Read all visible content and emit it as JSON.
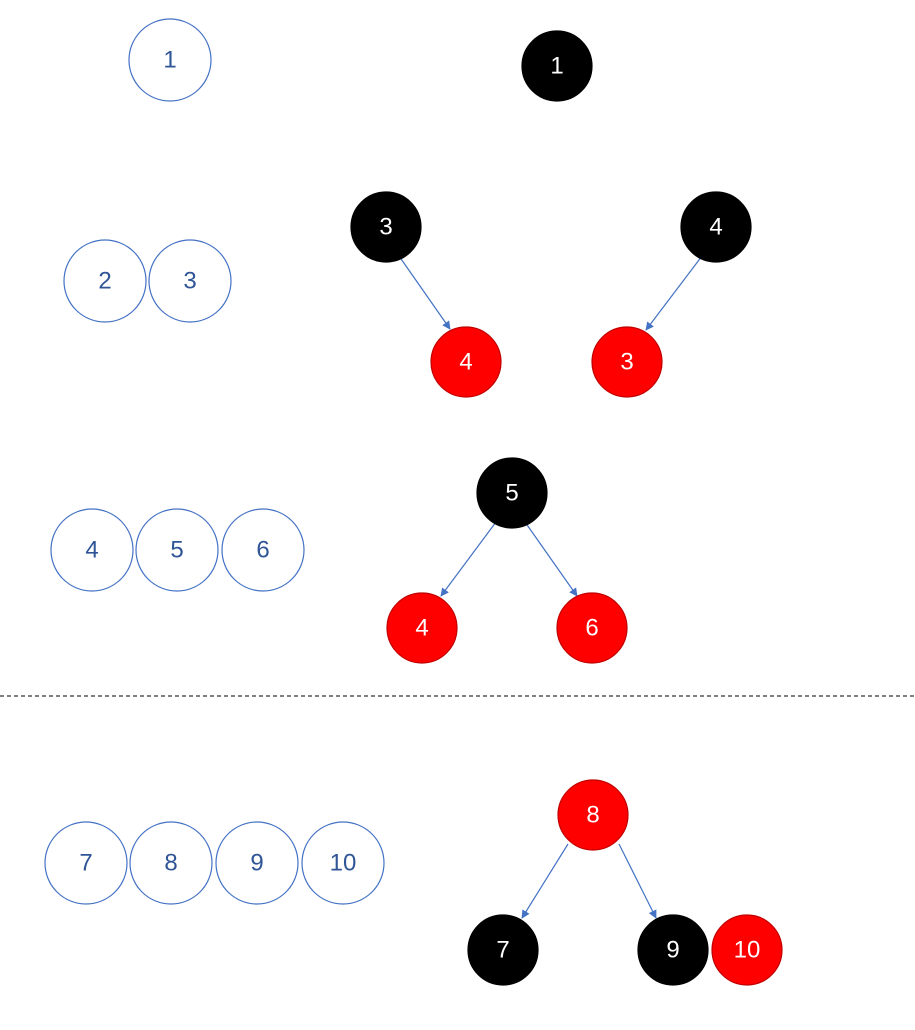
{
  "divider": {
    "style": "dashed",
    "color": "#000000"
  },
  "colors": {
    "black_node": "#000000",
    "red_node": "#ff0000",
    "outline_node_border": "#4472c4",
    "outline_node_text": "#2f5597",
    "edge": "#4472c4"
  },
  "rows": [
    {
      "id": "row-1",
      "keys": [
        "1"
      ],
      "trees": [
        {
          "id": "tree-1",
          "root": {
            "key": "1",
            "color": "black"
          }
        }
      ]
    },
    {
      "id": "row-2-3",
      "keys": [
        "2",
        "3"
      ],
      "trees": [
        {
          "id": "tree-3-4",
          "root": {
            "key": "3",
            "color": "black"
          },
          "right": {
            "key": "4",
            "color": "red"
          }
        },
        {
          "id": "tree-4-3",
          "root": {
            "key": "4",
            "color": "black"
          },
          "left": {
            "key": "3",
            "color": "red"
          }
        }
      ]
    },
    {
      "id": "row-4-5-6",
      "keys": [
        "4",
        "5",
        "6"
      ],
      "trees": [
        {
          "id": "tree-5",
          "root": {
            "key": "5",
            "color": "black"
          },
          "left": {
            "key": "4",
            "color": "red"
          },
          "right": {
            "key": "6",
            "color": "red"
          }
        }
      ]
    },
    {
      "id": "row-7-10",
      "keys": [
        "7",
        "8",
        "9",
        "10"
      ],
      "trees": [
        {
          "id": "tree-8",
          "root": {
            "key": "8",
            "color": "red"
          },
          "left": {
            "key": "7",
            "color": "black"
          },
          "right": {
            "key": "9",
            "color": "black"
          },
          "attached": {
            "key": "10",
            "color": "red"
          }
        }
      ]
    }
  ]
}
